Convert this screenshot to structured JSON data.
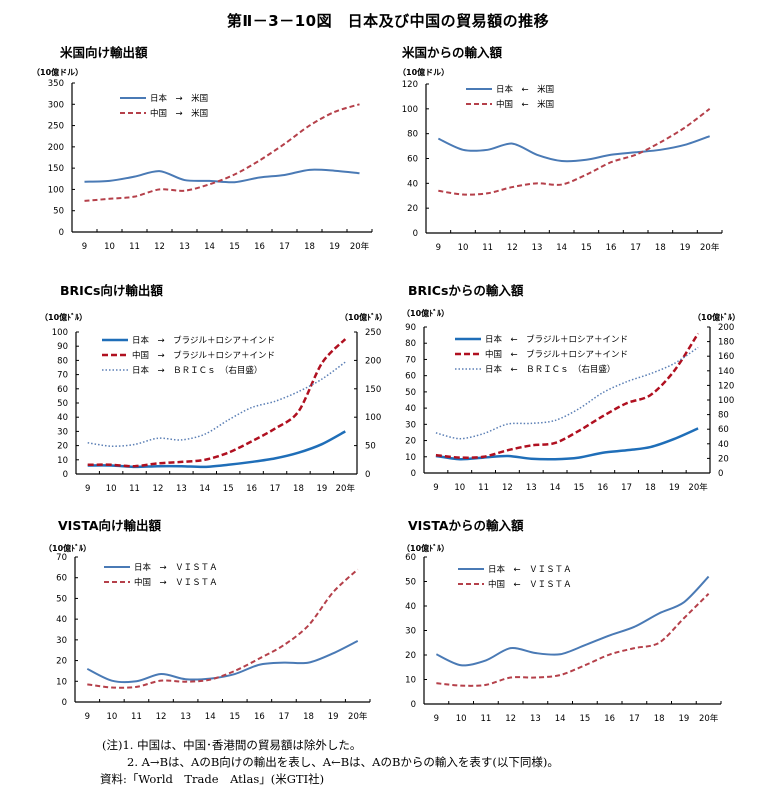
{
  "title": "第Ⅱ－3－10図　日本及び中国の貿易額の推移",
  "notes": [
    "(注)1. 中国は、中国･香港間の貿易額は除外した。",
    "2. A→Bは、AのB向けの輸出を表し、A←Bは、AのBからの輸入を表す(以下同様)。",
    "資料:「World　Trade　Atlas」(米GTI社)"
  ],
  "colors": {
    "japan": "#4a7ab5",
    "china": "#b5404a",
    "japan_strong": "#1f6eb8",
    "china_strong": "#b01020",
    "japan_dotted": "#5b7fb5"
  },
  "chart_data": [
    {
      "type": "line",
      "title": "米国向け輸出額",
      "unit_label": "（10億ドル）",
      "categories": [
        "9",
        "10",
        "11",
        "12",
        "13",
        "14",
        "15",
        "16",
        "17",
        "18",
        "19",
        "20年"
      ],
      "ylim": [
        0,
        350
      ],
      "yticks": [
        0,
        50,
        100,
        150,
        200,
        250,
        300,
        350
      ],
      "legend_position": "top-left",
      "series": [
        {
          "name": "日本　→　米国",
          "style": "solid",
          "color": "#4a7ab5",
          "axis": "left",
          "values": [
            118,
            120,
            130,
            143,
            122,
            120,
            117,
            128,
            134,
            146,
            144,
            138
          ]
        },
        {
          "name": "中国　→　米国",
          "style": "dashed",
          "color": "#b5404a",
          "axis": "left",
          "values": [
            73,
            78,
            83,
            100,
            97,
            112,
            135,
            168,
            207,
            250,
            282,
            300
          ]
        }
      ]
    },
    {
      "type": "line",
      "title": "米国からの輸入額",
      "unit_label": "（10億ドル）",
      "categories": [
        "9",
        "10",
        "11",
        "12",
        "13",
        "14",
        "15",
        "16",
        "17",
        "18",
        "19",
        "20年"
      ],
      "ylim": [
        0,
        120
      ],
      "yticks": [
        0,
        20,
        40,
        60,
        80,
        100,
        120
      ],
      "legend_position": "top-left",
      "series": [
        {
          "name": "日本　←　米国",
          "style": "solid",
          "color": "#4a7ab5",
          "axis": "left",
          "values": [
            76,
            67,
            67,
            72,
            63,
            58,
            59,
            63,
            65,
            67,
            71,
            78
          ]
        },
        {
          "name": "中国　←　米国",
          "style": "dashed",
          "color": "#b5404a",
          "axis": "left",
          "values": [
            34,
            31,
            32,
            37,
            40,
            39,
            47,
            57,
            63,
            73,
            85,
            100
          ]
        }
      ]
    },
    {
      "type": "line",
      "title": "BRICs向け輸出額",
      "unit_label": "（10億ﾄﾞﾙ）",
      "unit_label_right": "（10億ﾄﾞﾙ）",
      "categories": [
        "9",
        "10",
        "11",
        "12",
        "13",
        "14",
        "15",
        "16",
        "17",
        "18",
        "19",
        "20年"
      ],
      "ylim": [
        0,
        100
      ],
      "yticks": [
        0,
        10,
        20,
        30,
        40,
        50,
        60,
        70,
        80,
        90,
        100
      ],
      "ylim_right": [
        0,
        250
      ],
      "yticks_right": [
        0,
        50,
        100,
        150,
        200,
        250
      ],
      "legend_position": "top-left",
      "series": [
        {
          "name": "日本　→　ブラジル＋ロシア＋インド",
          "style": "solid-bold",
          "color": "#1f6eb8",
          "axis": "left",
          "values": [
            6,
            6,
            5,
            5.5,
            5.5,
            5,
            6.5,
            8.5,
            11,
            15,
            21,
            30
          ]
        },
        {
          "name": "中国　→　ブラジル＋ロシア＋インド",
          "style": "dashed-bold",
          "color": "#b01020",
          "axis": "left",
          "values": [
            6.5,
            6.5,
            5.5,
            7.5,
            8.5,
            10,
            15,
            23,
            32,
            44,
            78,
            95
          ]
        },
        {
          "name": "日本　→　ＢＲＩＣｓ　（右目盛）",
          "style": "dotted",
          "color": "#5b7fb5",
          "axis": "right",
          "values": [
            55,
            49,
            52,
            63,
            60,
            70,
            95,
            117,
            128,
            145,
            167,
            197
          ]
        }
      ]
    },
    {
      "type": "line",
      "title": "BRICsからの輸入額",
      "unit_label": "（10億ﾄﾞﾙ）",
      "unit_label_right": "（10億ﾄﾞﾙ）",
      "categories": [
        "9",
        "10",
        "11",
        "12",
        "13",
        "14",
        "15",
        "16",
        "17",
        "18",
        "19",
        "20年"
      ],
      "ylim": [
        0,
        90
      ],
      "yticks": [
        0,
        10,
        20,
        30,
        40,
        50,
        60,
        70,
        80,
        90
      ],
      "ylim_right": [
        0,
        200
      ],
      "yticks_right": [
        0,
        20,
        40,
        60,
        80,
        100,
        120,
        140,
        160,
        180,
        200
      ],
      "legend_position": "top-left",
      "series": [
        {
          "name": "日本　←　ブラジル＋ロシア＋インド",
          "style": "solid-bold",
          "color": "#1f6eb8",
          "axis": "left",
          "values": [
            10.5,
            8.5,
            9.5,
            10.5,
            8.8,
            8.5,
            9.5,
            12.5,
            14,
            16,
            21,
            27.5
          ]
        },
        {
          "name": "中国　←　ブラジル＋ロシア＋インド",
          "style": "dashed-bold",
          "color": "#b01020",
          "axis": "left",
          "values": [
            11,
            9.5,
            10,
            14,
            17,
            18.5,
            26,
            35,
            43,
            48,
            63,
            86
          ]
        },
        {
          "name": "日本　←　ＢＲＩＣｓ　（右目盛）",
          "style": "dotted",
          "color": "#5b7fb5",
          "axis": "right",
          "values": [
            55,
            47,
            54,
            67,
            68,
            72,
            88,
            110,
            125,
            136,
            150,
            172
          ]
        }
      ]
    },
    {
      "type": "line",
      "title": "VISTA向け輸出額",
      "unit_label": "（10億ﾄﾞﾙ）",
      "categories": [
        "9",
        "10",
        "11",
        "12",
        "13",
        "14",
        "15",
        "16",
        "17",
        "18",
        "19",
        "20年"
      ],
      "ylim": [
        0,
        70
      ],
      "yticks": [
        0,
        10,
        20,
        30,
        40,
        50,
        60,
        70
      ],
      "legend_position": "top-left",
      "series": [
        {
          "name": "日本　→　ＶＩＳＴＡ",
          "style": "solid",
          "color": "#4a7ab5",
          "axis": "left",
          "values": [
            16,
            10.3,
            10,
            13.5,
            11,
            11.3,
            13.5,
            18,
            19,
            19,
            23.5,
            29.5
          ]
        },
        {
          "name": "中国　→　ＶＩＳＴＡ",
          "style": "dashed",
          "color": "#b5404a",
          "axis": "left",
          "values": [
            8.5,
            7,
            7.3,
            10.3,
            9.8,
            10.8,
            15,
            21,
            27.5,
            37,
            53,
            64
          ]
        }
      ]
    },
    {
      "type": "line",
      "title": "VISTAからの輸入額",
      "unit_label": "（10億ﾄﾞﾙ）",
      "categories": [
        "9",
        "10",
        "11",
        "12",
        "13",
        "14",
        "15",
        "16",
        "17",
        "18",
        "19",
        "20年"
      ],
      "ylim": [
        0,
        60
      ],
      "yticks": [
        0,
        10,
        20,
        30,
        40,
        50,
        60
      ],
      "legend_position": "top-left",
      "series": [
        {
          "name": "日本　←　ＶＩＳＴＡ",
          "style": "solid",
          "color": "#4a7ab5",
          "axis": "left",
          "values": [
            20.3,
            15.8,
            17.8,
            22.8,
            20.8,
            20.3,
            24,
            28,
            31.5,
            37,
            41.5,
            52
          ]
        },
        {
          "name": "中国　←　ＶＩＳＴＡ",
          "style": "dashed",
          "color": "#b5404a",
          "axis": "left",
          "values": [
            8.5,
            7.5,
            7.8,
            10.8,
            10.8,
            11.8,
            15.8,
            20.2,
            22.8,
            25,
            35,
            45
          ]
        }
      ]
    }
  ]
}
